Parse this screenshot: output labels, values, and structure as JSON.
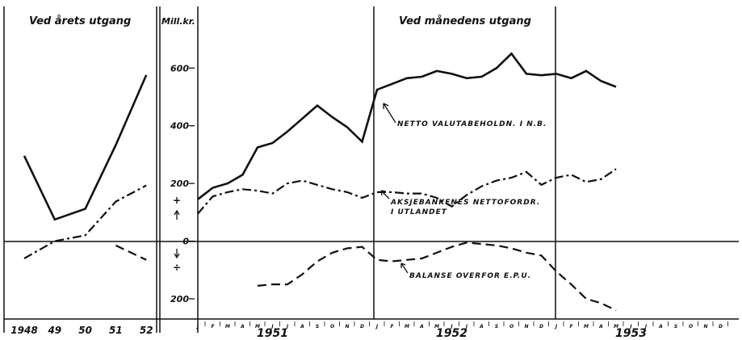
{
  "chart_data": [
    {
      "type": "line",
      "title": "Ved årets utgang",
      "categories": [
        "1948",
        "49",
        "50",
        "51",
        "52"
      ],
      "ylim": [
        -270,
        780
      ],
      "series": [
        {
          "color": "#111111",
          "style": "solid",
          "values": [
            296,
            75,
            112,
            333,
            576
          ]
        },
        {
          "color": "#111111",
          "style": "dashdot",
          "values": [
            -60,
            0,
            20,
            137,
            193
          ]
        },
        {
          "color": "#111111",
          "style": "dashed",
          "values": [
            null,
            null,
            null,
            -15,
            -65
          ]
        }
      ]
    },
    {
      "type": "line",
      "title": "Ved månedens utgang",
      "y_label": "Mill.kr.",
      "positive_sign": "+",
      "negative_sign": "÷",
      "categories": [
        "J",
        "F",
        "M",
        "A",
        "M",
        "J",
        "J",
        "A",
        "S",
        "O",
        "N",
        "D",
        "J",
        "F",
        "M",
        "A",
        "M",
        "J",
        "J",
        "A",
        "S",
        "O",
        "N",
        "D",
        "J",
        "F",
        "M",
        "A",
        "M",
        "J",
        "J",
        "A",
        "S",
        "O",
        "N",
        "D"
      ],
      "year_labels": [
        "1951",
        "1952",
        "1953"
      ],
      "ylim": [
        -270,
        780
      ],
      "yticks": [
        600,
        400,
        200,
        0,
        {
          "value": -200,
          "label": "200"
        }
      ],
      "series": [
        {
          "name": "NETTO VALUTABEHOLDN. I N.B.",
          "color": "#111111",
          "style": "solid",
          "values": [
            145,
            185,
            200,
            230,
            325,
            340,
            380,
            425,
            470,
            430,
            395,
            345,
            525,
            545,
            565,
            570,
            590,
            580,
            565,
            570,
            600,
            650,
            580,
            575,
            580,
            565,
            590,
            555,
            535,
            null,
            null,
            null,
            null,
            null,
            null,
            null
          ]
        },
        {
          "name": "AKSJEBANKENES NETTOFORDR. I UTLANDET",
          "color": "#111111",
          "style": "dashdot",
          "values": [
            95,
            155,
            170,
            180,
            175,
            165,
            200,
            210,
            195,
            180,
            170,
            150,
            170,
            170,
            165,
            165,
            150,
            120,
            160,
            190,
            210,
            220,
            240,
            195,
            220,
            230,
            205,
            215,
            250,
            null,
            null,
            null,
            null,
            null,
            null,
            null
          ]
        },
        {
          "name": "BALANSE OVERFOR E.P.U.",
          "color": "#111111",
          "style": "dashed",
          "values": [
            null,
            null,
            null,
            null,
            -155,
            -150,
            -150,
            -115,
            -70,
            -40,
            -25,
            -20,
            -65,
            -70,
            -65,
            -60,
            -40,
            -20,
            -5,
            -10,
            -15,
            -25,
            -40,
            -50,
            -105,
            -150,
            -200,
            -215,
            -240,
            null,
            null,
            null,
            null,
            null,
            null,
            null
          ]
        }
      ]
    }
  ]
}
